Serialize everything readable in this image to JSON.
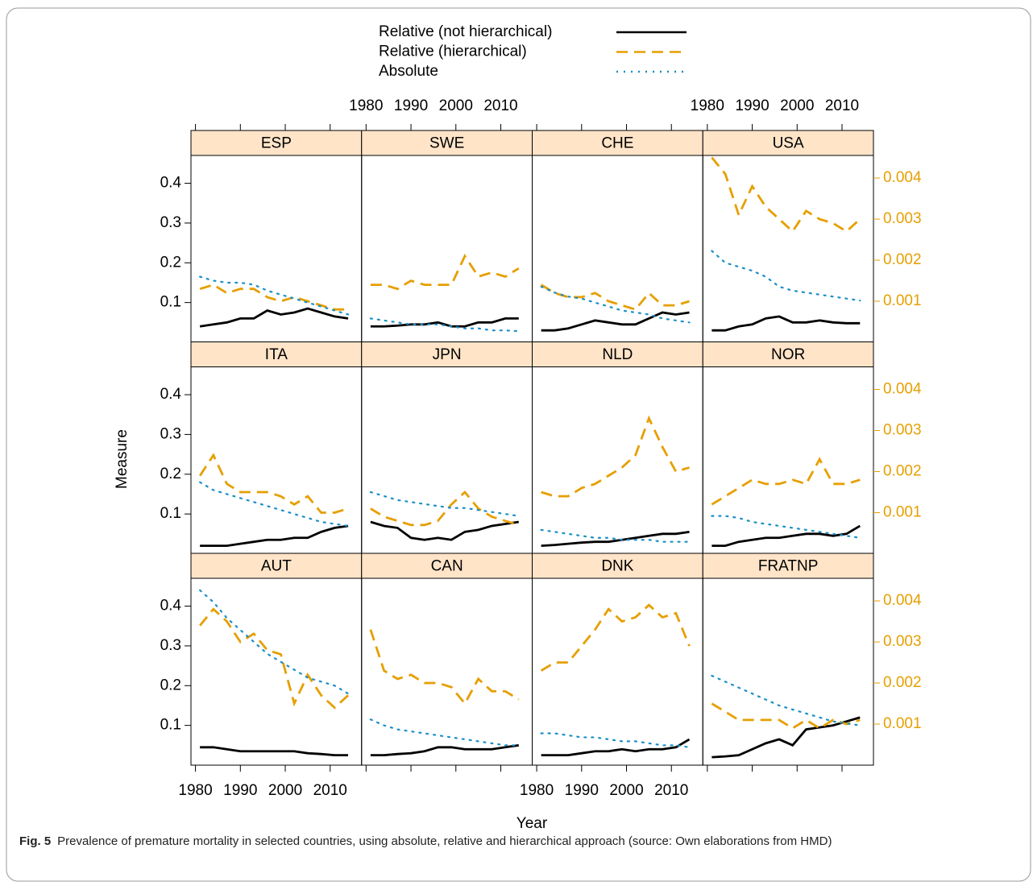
{
  "chart_data": {
    "type": "line",
    "xlabel": "Year",
    "ylabel": "Measure",
    "caption_label": "Fig. 5",
    "caption": "Prevalence of premature mortality in selected countries, using absolute, relative and hierarchical approach (source: Own elaborations from HMD)",
    "x": [
      1981,
      1984,
      1987,
      1990,
      1993,
      1996,
      1999,
      2002,
      2005,
      2008,
      2011,
      2014
    ],
    "xlim": [
      1979,
      2017
    ],
    "xticks": [
      1980,
      1990,
      2000,
      2010
    ],
    "ylim": [
      0,
      0.47
    ],
    "yticks": [
      0.1,
      0.2,
      0.3,
      0.4
    ],
    "y2lim": [
      0,
      0.00455
    ],
    "y2ticks": [
      0.001,
      0.002,
      0.003,
      0.004
    ],
    "y2color": "#E69F00",
    "series": [
      {
        "name": "Relative (not hierarchical)",
        "color": "#000000",
        "dash": "none",
        "axis": "y"
      },
      {
        "name": "Relative (hierarchical)",
        "color": "#E69F00",
        "dash": "14 8",
        "axis": "y2"
      },
      {
        "name": "Absolute",
        "color": "#1a8fc6",
        "dash": "2 7",
        "axis": "y"
      }
    ],
    "panels": [
      {
        "title": "ESP",
        "series": [
          {
            "values": [
              0.04,
              0.045,
              0.05,
              0.06,
              0.06,
              0.08,
              0.07,
              0.075,
              0.085,
              0.075,
              0.065,
              0.06
            ]
          },
          {
            "values": [
              0.0013,
              0.0014,
              0.0012,
              0.0013,
              0.0013,
              0.0011,
              0.001,
              0.0011,
              0.001,
              0.0009,
              0.0008,
              0.0008
            ]
          },
          {
            "values": [
              0.165,
              0.155,
              0.15,
              0.15,
              0.145,
              0.13,
              0.12,
              0.11,
              0.1,
              0.09,
              0.08,
              0.07
            ]
          }
        ]
      },
      {
        "title": "SWE",
        "series": [
          {
            "values": [
              0.04,
              0.04,
              0.042,
              0.045,
              0.045,
              0.05,
              0.04,
              0.04,
              0.05,
              0.05,
              0.06,
              0.06
            ]
          },
          {
            "values": [
              0.0014,
              0.0014,
              0.0013,
              0.0015,
              0.0014,
              0.0014,
              0.0014,
              0.0021,
              0.0016,
              0.0017,
              0.0016,
              0.0018
            ]
          },
          {
            "values": [
              0.06,
              0.055,
              0.05,
              0.045,
              0.045,
              0.045,
              0.04,
              0.035,
              0.035,
              0.03,
              0.03,
              0.028
            ]
          }
        ]
      },
      {
        "title": "CHE",
        "series": [
          {
            "values": [
              0.03,
              0.03,
              0.035,
              0.045,
              0.055,
              0.05,
              0.045,
              0.045,
              0.06,
              0.075,
              0.07,
              0.075
            ]
          },
          {
            "values": [
              0.0014,
              0.0012,
              0.0011,
              0.0011,
              0.0012,
              0.001,
              0.0009,
              0.0008,
              0.0012,
              0.0009,
              0.0009,
              0.001
            ]
          },
          {
            "values": [
              0.14,
              0.125,
              0.115,
              0.11,
              0.1,
              0.09,
              0.08,
              0.075,
              0.07,
              0.06,
              0.055,
              0.05
            ]
          }
        ]
      },
      {
        "title": "USA",
        "series": [
          {
            "values": [
              0.03,
              0.03,
              0.04,
              0.045,
              0.06,
              0.065,
              0.05,
              0.05,
              0.055,
              0.05,
              0.048,
              0.048
            ]
          },
          {
            "values": [
              0.0045,
              0.0041,
              0.0031,
              0.0038,
              0.0033,
              0.003,
              0.0027,
              0.0032,
              0.003,
              0.0029,
              0.0027,
              0.003
            ]
          },
          {
            "values": [
              0.23,
              0.2,
              0.19,
              0.18,
              0.165,
              0.14,
              0.13,
              0.125,
              0.12,
              0.115,
              0.11,
              0.105
            ]
          }
        ]
      },
      {
        "title": "ITA",
        "series": [
          {
            "values": [
              0.02,
              0.02,
              0.02,
              0.025,
              0.03,
              0.035,
              0.035,
              0.04,
              0.04,
              0.055,
              0.065,
              0.07
            ]
          },
          {
            "values": [
              0.0019,
              0.0024,
              0.0017,
              0.0015,
              0.0015,
              0.0015,
              0.0014,
              0.0012,
              0.0014,
              0.001,
              0.001,
              0.0011
            ]
          },
          {
            "values": [
              0.18,
              0.16,
              0.15,
              0.14,
              0.13,
              0.12,
              0.11,
              0.1,
              0.09,
              0.08,
              0.075,
              0.07
            ]
          }
        ]
      },
      {
        "title": "JPN",
        "series": [
          {
            "values": [
              0.08,
              0.07,
              0.065,
              0.04,
              0.035,
              0.04,
              0.035,
              0.055,
              0.06,
              0.07,
              0.075,
              0.08
            ]
          },
          {
            "values": [
              0.0011,
              0.0009,
              0.0008,
              0.0007,
              0.0007,
              0.0008,
              0.0012,
              0.0015,
              0.0011,
              0.0009,
              0.0008,
              0.0007
            ]
          },
          {
            "values": [
              0.155,
              0.145,
              0.135,
              0.13,
              0.125,
              0.12,
              0.115,
              0.115,
              0.11,
              0.105,
              0.1,
              0.095
            ]
          }
        ]
      },
      {
        "title": "NLD",
        "series": [
          {
            "values": [
              0.02,
              0.022,
              0.025,
              0.028,
              0.03,
              0.03,
              0.035,
              0.04,
              0.045,
              0.05,
              0.05,
              0.055
            ]
          },
          {
            "values": [
              0.0015,
              0.0014,
              0.0014,
              0.0016,
              0.0017,
              0.0019,
              0.0021,
              0.0024,
              0.0033,
              0.0026,
              0.002,
              0.0021
            ]
          },
          {
            "values": [
              0.06,
              0.055,
              0.05,
              0.045,
              0.04,
              0.04,
              0.035,
              0.035,
              0.035,
              0.03,
              0.03,
              0.03
            ]
          }
        ]
      },
      {
        "title": "NOR",
        "series": [
          {
            "values": [
              0.02,
              0.02,
              0.03,
              0.035,
              0.04,
              0.04,
              0.045,
              0.05,
              0.05,
              0.045,
              0.05,
              0.07
            ]
          },
          {
            "values": [
              0.0012,
              0.0014,
              0.0016,
              0.0018,
              0.0017,
              0.0017,
              0.0018,
              0.0017,
              0.0023,
              0.0017,
              0.0017,
              0.0018
            ]
          },
          {
            "values": [
              0.095,
              0.095,
              0.09,
              0.08,
              0.075,
              0.07,
              0.065,
              0.06,
              0.055,
              0.05,
              0.045,
              0.04
            ]
          }
        ]
      },
      {
        "title": "AUT",
        "series": [
          {
            "values": [
              0.045,
              0.045,
              0.04,
              0.035,
              0.035,
              0.035,
              0.035,
              0.035,
              0.03,
              0.028,
              0.025,
              0.025
            ]
          },
          {
            "values": [
              0.0034,
              0.0038,
              0.0035,
              0.003,
              0.0032,
              0.0028,
              0.0027,
              0.0015,
              0.0022,
              0.0017,
              0.0014,
              0.0017
            ]
          },
          {
            "values": [
              0.44,
              0.41,
              0.37,
              0.34,
              0.31,
              0.28,
              0.26,
              0.24,
              0.22,
              0.21,
              0.2,
              0.18
            ]
          }
        ]
      },
      {
        "title": "CAN",
        "series": [
          {
            "values": [
              0.025,
              0.025,
              0.028,
              0.03,
              0.035,
              0.045,
              0.045,
              0.04,
              0.04,
              0.04,
              0.045,
              0.05
            ]
          },
          {
            "values": [
              0.0033,
              0.0023,
              0.0021,
              0.0022,
              0.002,
              0.002,
              0.0019,
              0.0015,
              0.0021,
              0.0018,
              0.0018,
              0.0016
            ]
          },
          {
            "values": [
              0.115,
              0.1,
              0.09,
              0.085,
              0.08,
              0.075,
              0.07,
              0.065,
              0.06,
              0.055,
              0.05,
              0.05
            ]
          }
        ]
      },
      {
        "title": "DNK",
        "series": [
          {
            "values": [
              0.025,
              0.025,
              0.025,
              0.03,
              0.035,
              0.035,
              0.04,
              0.035,
              0.04,
              0.04,
              0.045,
              0.065
            ]
          },
          {
            "values": [
              0.0023,
              0.0025,
              0.0025,
              0.0029,
              0.0033,
              0.0038,
              0.0035,
              0.0036,
              0.0039,
              0.0036,
              0.0037,
              0.0029
            ]
          },
          {
            "values": [
              0.08,
              0.08,
              0.075,
              0.07,
              0.07,
              0.065,
              0.06,
              0.06,
              0.055,
              0.05,
              0.05,
              0.045
            ]
          }
        ]
      },
      {
        "title": "FRATNP",
        "series": [
          {
            "values": [
              0.02,
              0.022,
              0.025,
              0.04,
              0.055,
              0.065,
              0.05,
              0.09,
              0.095,
              0.1,
              0.11,
              0.12
            ]
          },
          {
            "values": [
              0.0015,
              0.0013,
              0.0011,
              0.0011,
              0.0011,
              0.0011,
              0.0009,
              0.0011,
              0.0009,
              0.0011,
              0.001,
              0.0011
            ]
          },
          {
            "values": [
              0.225,
              0.21,
              0.195,
              0.18,
              0.165,
              0.15,
              0.14,
              0.13,
              0.12,
              0.11,
              0.105,
              0.1
            ]
          }
        ]
      }
    ]
  }
}
